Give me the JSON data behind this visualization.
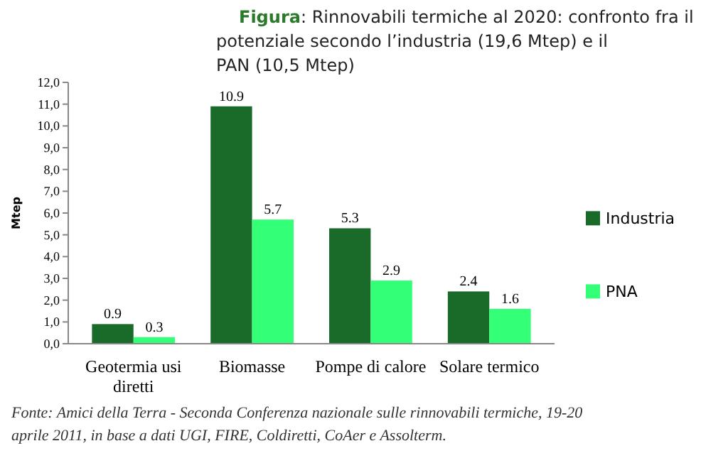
{
  "chart_data": {
    "type": "bar",
    "title": "Figura: Rinnovabili termiche al 2020: confronto fra il potenziale secondo l’industria (19,6 Mtep) e il PAN (10,5 Mtep)",
    "ylabel": "Mtep",
    "categories": [
      "Geotermia usi diretti",
      "Biomasse",
      "Pompe di calore",
      "Solare termico"
    ],
    "series": [
      {
        "name": "Industria",
        "color": "#1a6b2a",
        "values": [
          0.9,
          10.9,
          5.3,
          2.4
        ]
      },
      {
        "name": "PNA",
        "color": "#33ff77",
        "values": [
          0.3,
          5.7,
          2.9,
          1.6
        ]
      }
    ],
    "ylim": [
      0,
      12
    ],
    "yticks": [
      {
        "value": 0,
        "label": "0,0"
      },
      {
        "value": 1,
        "label": "1,0"
      },
      {
        "value": 2,
        "label": "2,0"
      },
      {
        "value": 3,
        "label": "3,0"
      },
      {
        "value": 4,
        "label": "4,0"
      },
      {
        "value": 5,
        "label": "5,0"
      },
      {
        "value": 6,
        "label": "6,0"
      },
      {
        "value": 7,
        "label": "7,0"
      },
      {
        "value": 8,
        "label": "8,0"
      },
      {
        "value": 9,
        "label": "9,0"
      },
      {
        "value": 10,
        "label": "10,0"
      },
      {
        "value": 11,
        "label": "11,0"
      },
      {
        "value": 12,
        "label": "12,0"
      }
    ],
    "data_labels": true,
    "legend": "right",
    "grid": false,
    "annotations": [
      "Fonte: Amici della Terra - Seconda Conferenza nazionale sulle rinnovabili termiche, 19-20 aprile 2011, in base a dati UGI, FIRE, Coldiretti, CoAer e Assolterm."
    ]
  }
}
